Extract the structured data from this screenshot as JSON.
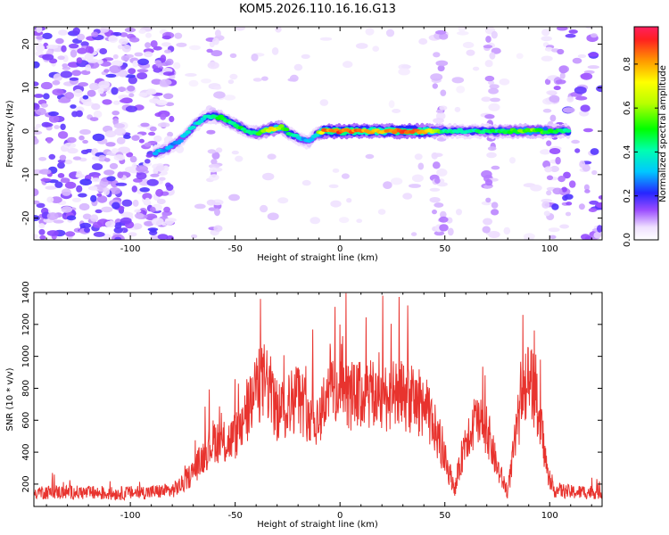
{
  "title": "KOM5.2026.110.16.16.G13",
  "chart_data": [
    {
      "type": "heatmap",
      "xlabel": "Height of straight line (km)",
      "ylabel": "Frequency (Hz)",
      "xlim": [
        -146,
        125
      ],
      "ylim": [
        -25,
        24
      ],
      "xticks": [
        -100,
        -50,
        0,
        50,
        100
      ],
      "yticks": [
        -20,
        -10,
        0,
        10,
        20
      ],
      "colorbar": {
        "label": "Normalized spectral amplitude",
        "range": [
          0,
          0.97
        ],
        "ticks": [
          0.0,
          0.2,
          0.4,
          0.6,
          0.8
        ]
      },
      "ridge": {
        "name": "dominant frequency track",
        "x": [
          -88,
          -82,
          -76,
          -70,
          -65,
          -60,
          -56,
          -52,
          -48,
          -44,
          -40,
          -36,
          -32,
          -28,
          -24,
          -20,
          -15,
          -12,
          -8,
          0,
          10,
          20,
          30,
          40,
          50,
          60,
          70,
          80,
          90,
          100,
          110
        ],
        "y": [
          -5,
          -4,
          -2,
          1,
          3,
          3.5,
          3,
          2,
          1,
          0,
          -0.5,
          0,
          0.5,
          1,
          -0.5,
          -1.5,
          -2.5,
          -1,
          0,
          0,
          0,
          0,
          0,
          0,
          0,
          0,
          0,
          0,
          0,
          0,
          0
        ],
        "amplitude": [
          0.35,
          0.3,
          0.3,
          0.35,
          0.4,
          0.45,
          0.5,
          0.45,
          0.5,
          0.4,
          0.5,
          0.6,
          0.8,
          0.6,
          0.45,
          0.35,
          0.3,
          0.3,
          0.85,
          0.9,
          0.85,
          0.8,
          0.9,
          0.85,
          0.45,
          0.4,
          0.45,
          0.5,
          0.6,
          0.5,
          0.45
        ]
      },
      "noise_columns_x": [
        -60,
        47,
        72,
        100
      ]
    },
    {
      "type": "line",
      "xlabel": "Height of straight line (km)",
      "ylabel": "SNR (10 * v/v)",
      "xlim": [
        -146,
        125
      ],
      "ylim": [
        60,
        1400
      ],
      "xticks": [
        -100,
        -50,
        0,
        50,
        100
      ],
      "yticks": [
        200,
        400,
        600,
        800,
        1000,
        1200,
        1400
      ],
      "color": "#e8332e",
      "series": [
        {
          "name": "SNR",
          "x": [
            -146,
            -130,
            -110,
            -90,
            -80,
            -75,
            -70,
            -65,
            -60,
            -55,
            -50,
            -45,
            -40,
            -35,
            -30,
            -25,
            -20,
            -15,
            -10,
            -5,
            0,
            10,
            20,
            30,
            40,
            45,
            50,
            55,
            60,
            65,
            70,
            75,
            80,
            85,
            90,
            95,
            100,
            110,
            125
          ],
          "y": [
            150,
            150,
            140,
            150,
            160,
            200,
            280,
            380,
            480,
            450,
            500,
            600,
            800,
            850,
            650,
            700,
            750,
            650,
            600,
            850,
            750,
            750,
            750,
            750,
            700,
            550,
            350,
            170,
            500,
            600,
            550,
            300,
            150,
            600,
            900,
            650,
            170,
            150,
            150
          ]
        }
      ]
    }
  ]
}
